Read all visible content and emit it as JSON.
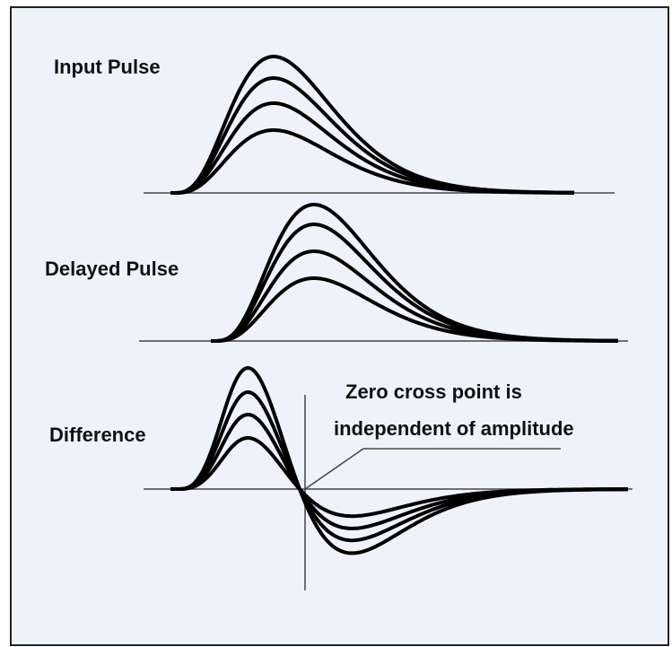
{
  "labels": {
    "input": "Input Pulse",
    "delayed": "Delayed Pulse",
    "difference": "Difference"
  },
  "annotation": {
    "line1": "Zero cross point is",
    "line2": "independent of amplitude"
  }
}
